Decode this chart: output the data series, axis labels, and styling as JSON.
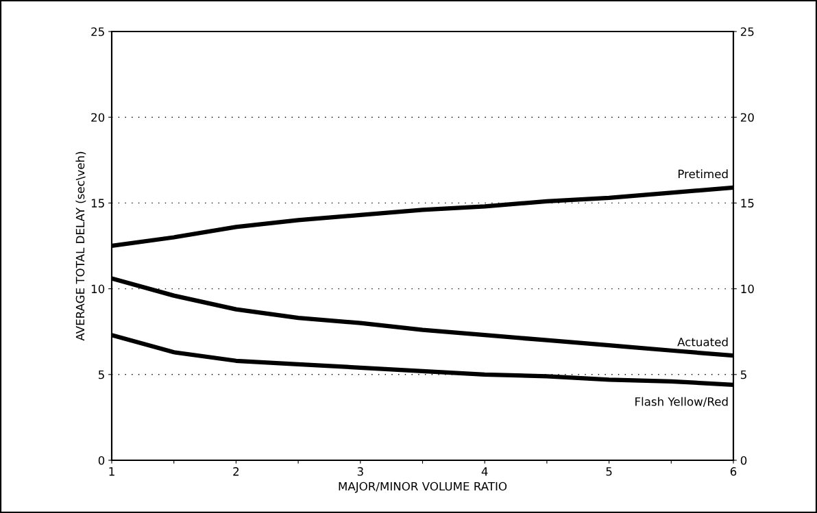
{
  "chart_data": {
    "type": "line",
    "xlabel": "MAJOR/MINOR VOLUME RATIO",
    "ylabel": "AVERAGE TOTAL DELAY (sec\\veh)",
    "x": [
      1,
      1.5,
      2,
      2.5,
      3,
      3.5,
      4,
      4.5,
      5,
      5.5,
      6
    ],
    "series": [
      {
        "name": "Pretimed",
        "color": "#000000",
        "values": [
          12.5,
          13.0,
          13.6,
          14.0,
          14.3,
          14.6,
          14.8,
          15.1,
          15.3,
          15.6,
          15.9
        ]
      },
      {
        "name": "Actuated",
        "color": "#000000",
        "values": [
          10.6,
          9.6,
          8.8,
          8.3,
          8.0,
          7.6,
          7.3,
          7.0,
          6.7,
          6.4,
          6.1
        ]
      },
      {
        "name": "Flash Yellow/Red",
        "color": "#000000",
        "values": [
          7.3,
          6.3,
          5.8,
          5.6,
          5.4,
          5.2,
          5.0,
          4.9,
          4.7,
          4.6,
          4.4
        ]
      }
    ],
    "xlim": [
      1,
      6
    ],
    "xticks": [
      1,
      {
        "value": 1.5,
        "label": null
      },
      2,
      {
        "value": 2.5,
        "label": null
      },
      3,
      {
        "value": 3.5,
        "label": null
      },
      4,
      {
        "value": 4.5,
        "label": null
      },
      5,
      {
        "value": 5.5,
        "label": null
      },
      6
    ],
    "ylim": [
      0,
      25
    ],
    "yticks": [
      0,
      5,
      10,
      15,
      20,
      25
    ],
    "y2lim": [
      0,
      25
    ],
    "y2ticks": [
      0,
      5,
      10,
      15,
      20,
      25
    ],
    "grid": "y",
    "line_style": "solid",
    "marker": "none"
  }
}
